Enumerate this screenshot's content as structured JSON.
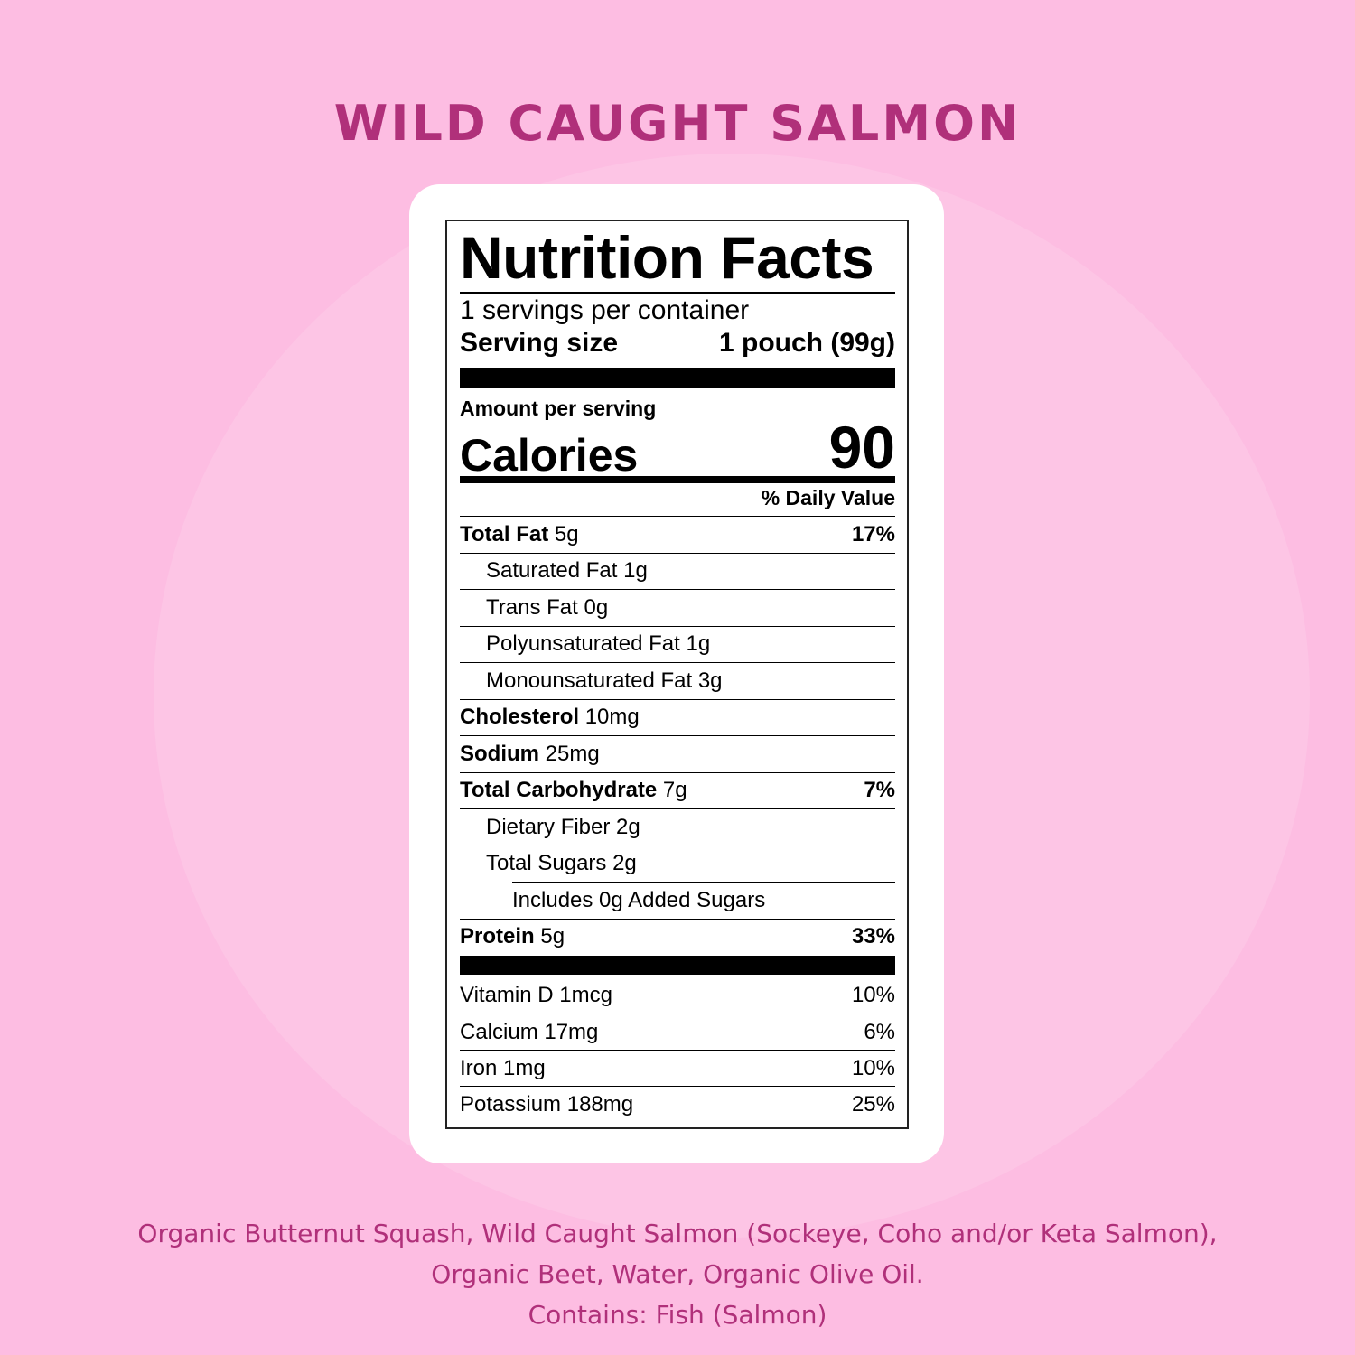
{
  "title": "WILD CAUGHT SALMON",
  "colors": {
    "background": "#fdbde2",
    "accent": "#b0307a",
    "card": "#ffffff"
  },
  "label": {
    "heading": "Nutrition Facts",
    "servings_per_container": "1 servings per container",
    "serving_size_label": "Serving size",
    "serving_size_value": "1 pouch (99g)",
    "amount_per_serving": "Amount per serving",
    "calories_label": "Calories",
    "calories_value": "90",
    "daily_value_header": "% Daily Value",
    "nutrients": [
      {
        "name": "Total Fat",
        "amount": "5g",
        "dv": "17%",
        "bold": true,
        "level": 0
      },
      {
        "name": "Saturated Fat",
        "amount": "1g",
        "dv": "",
        "bold": false,
        "level": 1
      },
      {
        "name": "Trans Fat",
        "amount": "0g",
        "dv": "",
        "bold": false,
        "level": 1
      },
      {
        "name": "Polyunsaturated Fat",
        "amount": "1g",
        "dv": "",
        "bold": false,
        "level": 1
      },
      {
        "name": "Monounsaturated Fat",
        "amount": "3g",
        "dv": "",
        "bold": false,
        "level": 1
      },
      {
        "name": "Cholesterol",
        "amount": "10mg",
        "dv": "",
        "bold": true,
        "level": 0
      },
      {
        "name": "Sodium",
        "amount": "25mg",
        "dv": "",
        "bold": true,
        "level": 0
      },
      {
        "name": "Total Carbohydrate",
        "amount": "7g",
        "dv": "7%",
        "bold": true,
        "level": 0
      },
      {
        "name": "Dietary Fiber",
        "amount": "2g",
        "dv": "",
        "bold": false,
        "level": 1
      },
      {
        "name": "Total Sugars",
        "amount": "2g",
        "dv": "",
        "bold": false,
        "level": 1
      },
      {
        "name": "Includes 0g Added Sugars",
        "amount": "",
        "dv": "",
        "bold": false,
        "level": 2
      },
      {
        "name": "Protein",
        "amount": "5g",
        "dv": "33%",
        "bold": true,
        "level": 0
      }
    ],
    "vitamins": [
      {
        "name": "Vitamin D",
        "amount": "1mcg",
        "dv": "10%"
      },
      {
        "name": "Calcium",
        "amount": "17mg",
        "dv": "6%"
      },
      {
        "name": "Iron",
        "amount": "1mg",
        "dv": "10%"
      },
      {
        "name": "Potassium",
        "amount": "188mg",
        "dv": "25%"
      }
    ]
  },
  "ingredients": {
    "line1": "Organic Butternut Squash, Wild Caught Salmon (Sockeye, Coho and/or Keta Salmon),",
    "line2": "Organic Beet, Water, Organic Olive Oil.",
    "allergens": "Contains: Fish (Salmon)"
  }
}
